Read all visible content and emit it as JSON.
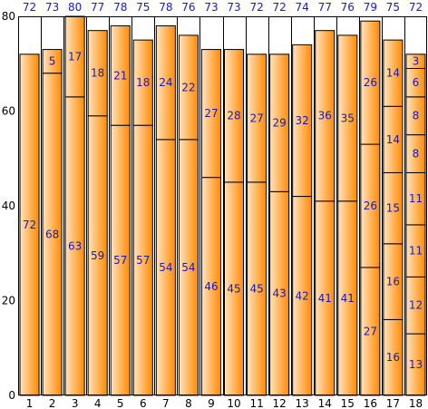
{
  "chart_data": {
    "type": "bar",
    "stacked": true,
    "categories": [
      "1",
      "2",
      "3",
      "4",
      "5",
      "6",
      "7",
      "8",
      "9",
      "10",
      "11",
      "12",
      "13",
      "14",
      "15",
      "16",
      "17",
      "18"
    ],
    "totals": [
      72,
      73,
      80,
      77,
      78,
      75,
      78,
      76,
      73,
      73,
      72,
      72,
      74,
      77,
      76,
      79,
      75,
      72
    ],
    "segments": [
      [
        72
      ],
      [
        68,
        5
      ],
      [
        63,
        17
      ],
      [
        59,
        18
      ],
      [
        57,
        21
      ],
      [
        57,
        18
      ],
      [
        54,
        24
      ],
      [
        54,
        22
      ],
      [
        46,
        27
      ],
      [
        45,
        28
      ],
      [
        45,
        27
      ],
      [
        43,
        29
      ],
      [
        42,
        32
      ],
      [
        41,
        36
      ],
      [
        41,
        35
      ],
      [
        27,
        26,
        26
      ],
      [
        16,
        16,
        15,
        14,
        14
      ],
      [
        13,
        12,
        11,
        11,
        8,
        8,
        6,
        3
      ]
    ],
    "ylim": [
      0,
      80
    ],
    "yticks": [
      0,
      20,
      40,
      60,
      80
    ],
    "grid": true,
    "colors": {
      "bar_light": "#ffe3bf",
      "bar_dark": "#ff8a00",
      "label": "#1a1ab4"
    }
  }
}
